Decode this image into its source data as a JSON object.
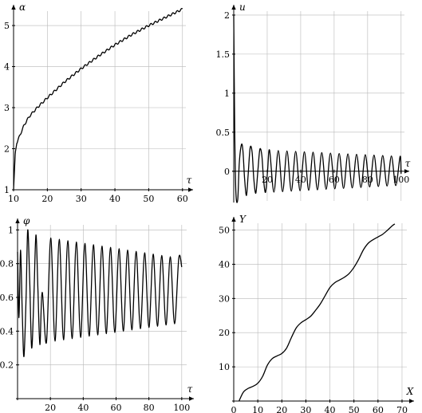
{
  "chart_data": [
    {
      "id": "p1",
      "type": "line",
      "title": "",
      "xlabel": "τ",
      "ylabel": "α",
      "xlim": [
        10,
        61
      ],
      "ylim": [
        1,
        5.35
      ],
      "grid": true,
      "x_ticks": [
        10,
        20,
        30,
        40,
        50,
        60
      ],
      "y_ticks": [
        1,
        2,
        3,
        4,
        5
      ],
      "x_tick_labels": [
        "10",
        "20",
        "30",
        "40",
        "50",
        "60"
      ],
      "y_tick_labels": [
        "1",
        "2",
        "3",
        "4",
        "5"
      ],
      "series": [
        {
          "points": [
            [
              10,
              1.0
            ],
            [
              10.5,
              1.9
            ],
            [
              11,
              2.15
            ],
            [
              12,
              2.35
            ],
            [
              13,
              2.55
            ],
            [
              14,
              2.7
            ],
            [
              15,
              2.82
            ],
            [
              17,
              3.0
            ],
            [
              20,
              3.24
            ],
            [
              25,
              3.62
            ],
            [
              30,
              3.95
            ],
            [
              35,
              4.25
            ],
            [
              40,
              4.53
            ],
            [
              45,
              4.78
            ],
            [
              50,
              5.0
            ],
            [
              55,
              5.2
            ],
            [
              60,
              5.4
            ]
          ],
          "ripple": {
            "amplitude": 0.025,
            "period": 1.3
          }
        }
      ]
    },
    {
      "id": "p2",
      "type": "line",
      "title": "",
      "xlabel": "τ",
      "ylabel": "u",
      "xlim": [
        0,
        102
      ],
      "ylim": [
        -0.38,
        2.05
      ],
      "grid": true,
      "x_ticks": [
        20,
        40,
        60,
        80,
        100
      ],
      "y_ticks": [
        0,
        0.5,
        1,
        1.5,
        2
      ],
      "x_tick_labels": [
        "20",
        "40",
        "60",
        "80",
        "100"
      ],
      "y_tick_labels": [
        "0",
        "0.5",
        "1",
        "1.5",
        "2"
      ],
      "series": [
        {
          "points": [
            [
              0,
              2.0
            ],
            [
              0.6,
              0.5
            ],
            [
              1.3,
              -0.28
            ],
            [
              2.4,
              -0.36
            ],
            [
              3.3,
              0.1
            ],
            [
              4.6,
              0.34
            ],
            [
              5.5,
              0.26
            ],
            [
              6.5,
              -0.1
            ],
            [
              7.6,
              -0.31
            ],
            [
              8.6,
              -0.05
            ],
            [
              9.8,
              0.3
            ],
            [
              11,
              0.24
            ],
            [
              12,
              -0.1
            ],
            [
              13.2,
              -0.28
            ],
            [
              14.4,
              0.0
            ],
            [
              15.6,
              0.28
            ],
            [
              16.8,
              0.2
            ],
            [
              17.8,
              -0.1
            ],
            [
              19,
              -0.27
            ],
            [
              20.2,
              0.0
            ],
            [
              21.4,
              0.27
            ]
          ],
          "oscillation": {
            "start": 21.4,
            "end": 100,
            "period": 5.2,
            "peak_start": 0.27,
            "peak_end": 0.19,
            "trough_start": -0.27,
            "trough_end": -0.18
          }
        }
      ]
    },
    {
      "id": "p3",
      "type": "line",
      "title": "",
      "xlabel": "τ",
      "ylabel": "φ",
      "xlim": [
        0,
        103
      ],
      "ylim": [
        0,
        1.03
      ],
      "grid": true,
      "x_ticks": [
        20,
        40,
        60,
        80,
        100
      ],
      "y_ticks": [
        0.2,
        0.4,
        0.6,
        0.8,
        1
      ],
      "x_tick_labels": [
        "20",
        "40",
        "60",
        "80",
        "100"
      ],
      "y_tick_labels": [
        "0.2",
        "0.4",
        "0.6",
        "0.8",
        "1"
      ],
      "series": [
        {
          "points": [
            [
              0,
              0.87
            ],
            [
              0.9,
              0.48
            ],
            [
              1.8,
              0.88
            ],
            [
              2.9,
              0.5
            ],
            [
              3.9,
              0.25
            ],
            [
              5.2,
              0.6
            ],
            [
              6.2,
              1.0
            ],
            [
              7.4,
              0.7
            ],
            [
              8.6,
              0.3
            ],
            [
              10,
              0.62
            ],
            [
              11.2,
              0.97
            ],
            [
              12.4,
              0.65
            ],
            [
              13.6,
              0.32
            ],
            [
              15,
              0.63
            ]
          ],
          "oscillation": {
            "start": 15,
            "end": 100,
            "period": 5.2,
            "peak_start": 0.96,
            "peak_end": 0.83,
            "trough_start": 0.33,
            "trough_end": 0.45,
            "end_value": 0.78
          }
        }
      ]
    },
    {
      "id": "p4",
      "type": "line",
      "title": "",
      "xlabel": "X",
      "ylabel": "Y",
      "xlim": [
        0,
        72
      ],
      "ylim": [
        0,
        52
      ],
      "grid": true,
      "x_ticks": [
        0,
        10,
        20,
        30,
        40,
        50,
        60,
        70
      ],
      "y_ticks": [
        10,
        20,
        30,
        40,
        50
      ],
      "x_tick_labels": [
        "0",
        "10",
        "20",
        "30",
        "40",
        "50",
        "60",
        "70"
      ],
      "y_tick_labels": [
        "10",
        "20",
        "30",
        "40",
        "50"
      ],
      "series": [
        {
          "points": [
            [
              2.2,
              0
            ],
            [
              4,
              2.6
            ],
            [
              6,
              3.7
            ],
            [
              8,
              4.3
            ],
            [
              10,
              5.2
            ],
            [
              12,
              7.2
            ],
            [
              14,
              10.5
            ],
            [
              16,
              12.4
            ],
            [
              18,
              13.2
            ],
            [
              20,
              13.9
            ],
            [
              22,
              15.5
            ],
            [
              24,
              18.6
            ],
            [
              26,
              21.4
            ],
            [
              28,
              22.9
            ],
            [
              30,
              23.8
            ],
            [
              32,
              24.8
            ],
            [
              34,
              26.5
            ],
            [
              36,
              28.4
            ],
            [
              38,
              30.8
            ],
            [
              40,
              33.2
            ],
            [
              42,
              34.6
            ],
            [
              44,
              35.4
            ],
            [
              46,
              36.2
            ],
            [
              48,
              37.3
            ],
            [
              50,
              39.1
            ],
            [
              52,
              41.5
            ],
            [
              54,
              44.3
            ],
            [
              56,
              46.2
            ],
            [
              58,
              47.2
            ],
            [
              60,
              48
            ],
            [
              62,
              48.8
            ],
            [
              64,
              50
            ],
            [
              66,
              51.3
            ],
            [
              67,
              51.8
            ]
          ]
        }
      ]
    }
  ]
}
